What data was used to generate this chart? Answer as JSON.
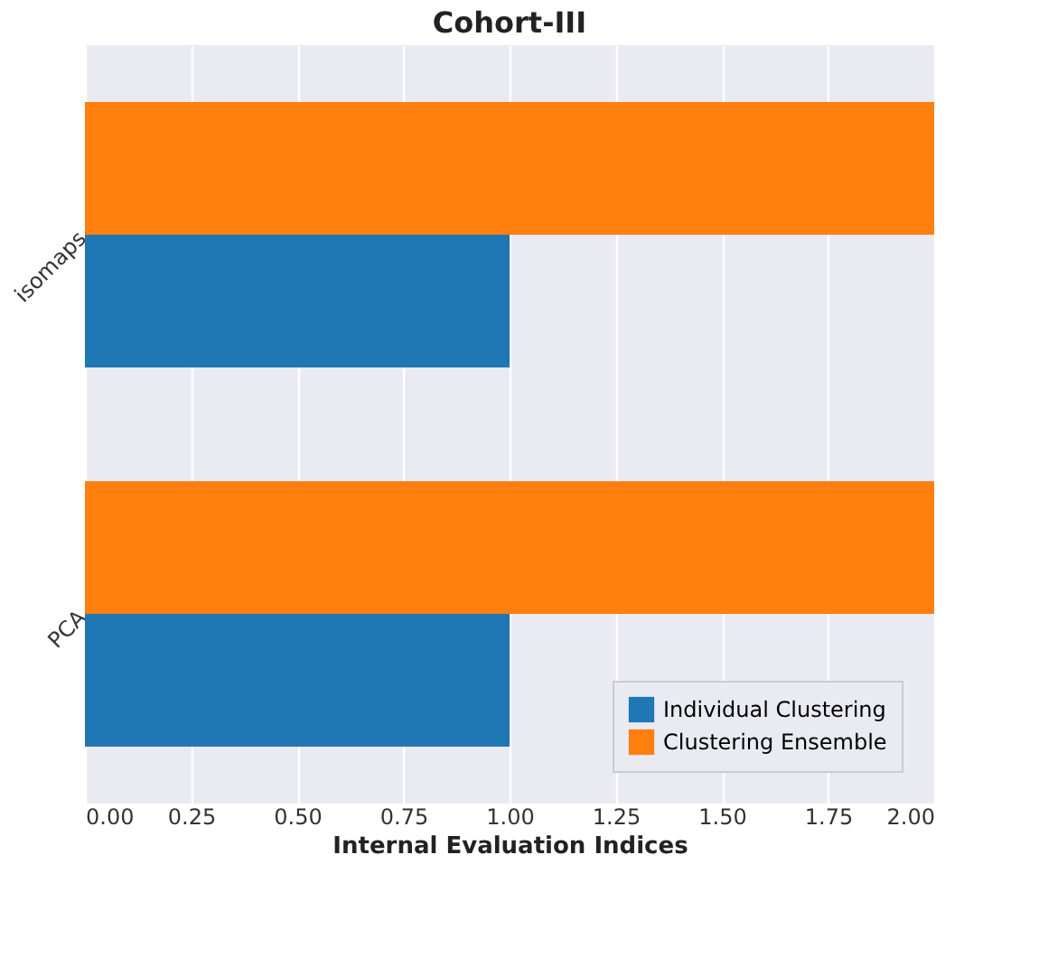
{
  "chart_data": {
    "type": "bar",
    "orientation": "horizontal",
    "title": "Cohort-III",
    "xlabel": "Internal Evaluation Indices",
    "categories": [
      "isomaps",
      "PCA"
    ],
    "series": [
      {
        "name": "Individual Clustering",
        "color": "#1f77b4",
        "values": [
          1,
          1
        ]
      },
      {
        "name": "Clustering Ensemble",
        "color": "#ff7f0e",
        "values": [
          2,
          2
        ]
      }
    ],
    "xlim": [
      0,
      2
    ],
    "xticks": [
      {
        "value": 0,
        "label": "0.00"
      },
      {
        "value": 0.25,
        "label": "0.25"
      },
      {
        "value": 0.5,
        "label": "0.50"
      },
      {
        "value": 0.75,
        "label": "0.75"
      },
      {
        "value": 1,
        "label": "1.00"
      },
      {
        "value": 1.25,
        "label": "1.25"
      },
      {
        "value": 1.5,
        "label": "1.50"
      },
      {
        "value": 1.75,
        "label": "1.75"
      },
      {
        "value": 2,
        "label": "2.00"
      }
    ],
    "grid": "x",
    "legend": "bottom right"
  }
}
